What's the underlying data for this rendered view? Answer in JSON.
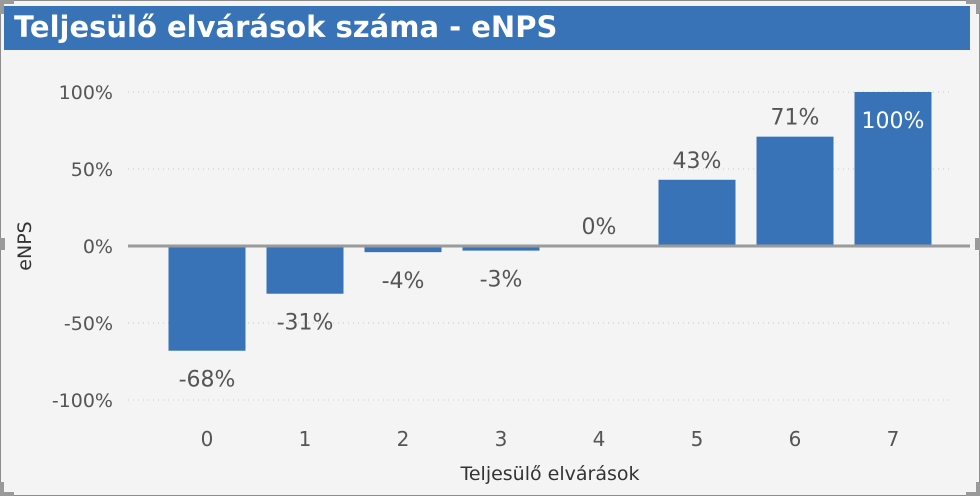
{
  "title": "Teljesülő elvárások száma - eNPS",
  "chart_data": {
    "type": "bar",
    "categories": [
      "0",
      "1",
      "2",
      "3",
      "4",
      "5",
      "6",
      "7"
    ],
    "values": [
      -68,
      -31,
      -4,
      -3,
      0,
      43,
      71,
      100
    ],
    "value_labels": [
      "-68%",
      "-31%",
      "-4%",
      "-3%",
      "0%",
      "43%",
      "71%",
      "100%"
    ],
    "xlabel": "Teljesülő elvárások",
    "ylabel": "eNPS",
    "ylim": [
      -100,
      100
    ],
    "yticks": [
      100,
      50,
      0,
      -50,
      -100
    ],
    "ytick_labels": [
      "100%",
      "50%",
      "0%",
      "-50%",
      "-100%"
    ],
    "grid": true,
    "bar_color": "#3873b8"
  }
}
